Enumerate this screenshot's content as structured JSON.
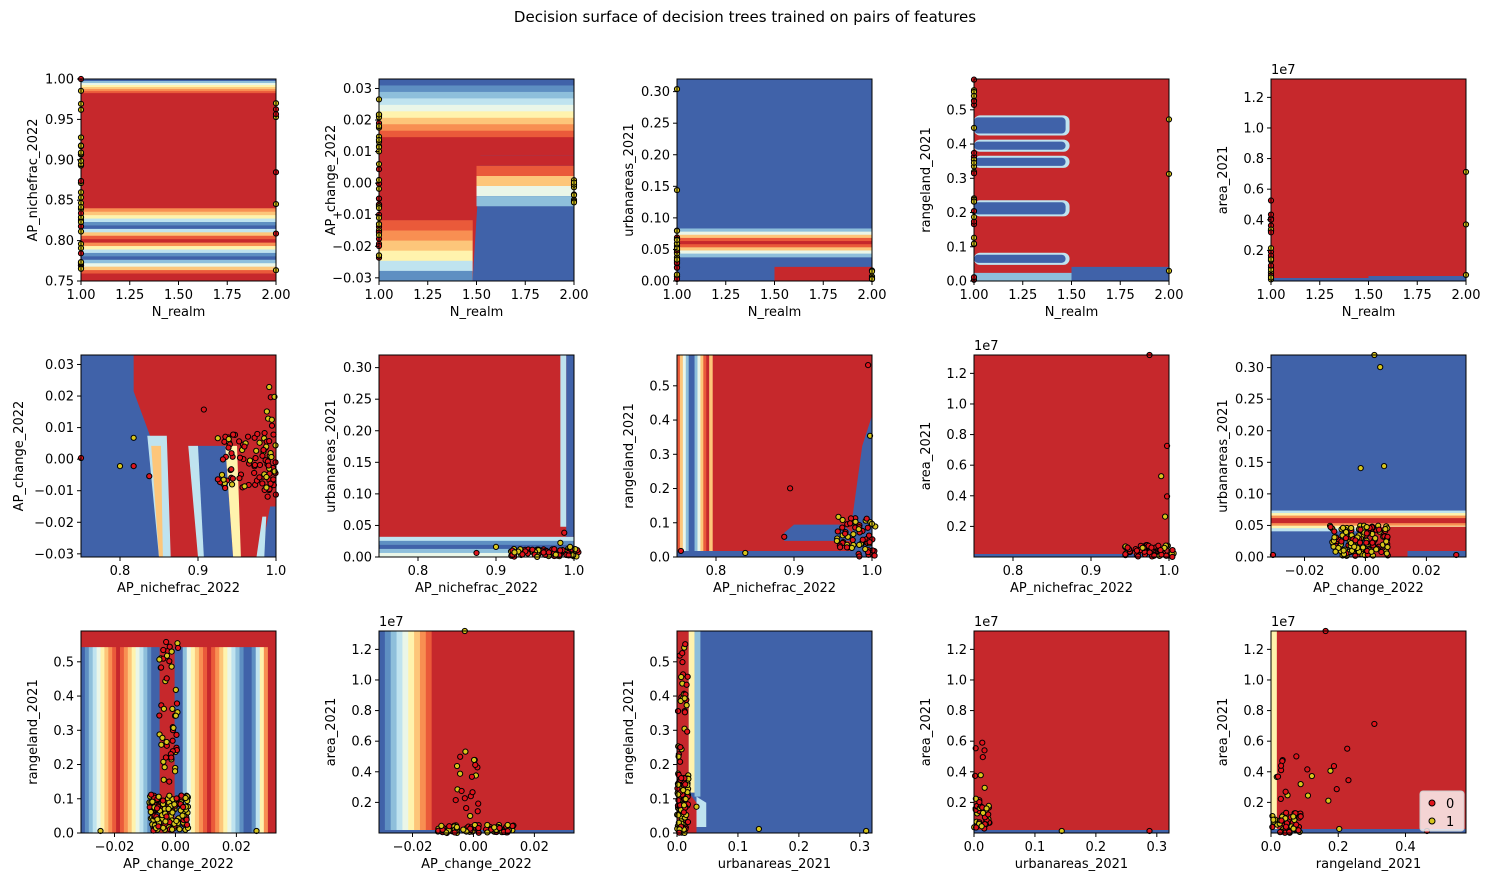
{
  "figure": {
    "title": "Decision surface of decision trees trained on pairs of features",
    "legend": {
      "location": "lower right",
      "entries": [
        "0",
        "1"
      ]
    }
  },
  "palette": {
    "class0": "#e0141c",
    "class1": "#d8c61c",
    "surface": [
      "#c6282c",
      "#ea5a3a",
      "#f88f52",
      "#fdc67a",
      "#fff3ad",
      "#eaf6e8",
      "#bfe3ef",
      "#8ebfdb",
      "#5e8fc2",
      "#4062a9"
    ]
  },
  "chart_data": [
    {
      "type": "scatter",
      "kind": "decision-surface",
      "xlabel": "N_realm",
      "ylabel": "AP_nichefrac_2022",
      "xlim": [
        1.0,
        2.0
      ],
      "ylim": [
        0.75,
        1.0
      ],
      "xticks": [
        "1.00",
        "1.25",
        "1.50",
        "1.75",
        "2.00"
      ],
      "yticks": [
        "0.75",
        "0.80",
        "0.85",
        "0.90",
        "0.95",
        "1.00"
      ],
      "offset": "",
      "legend": false
    },
    {
      "type": "scatter",
      "kind": "decision-surface",
      "xlabel": "N_realm",
      "ylabel": "AP_change_2022",
      "xlim": [
        1.0,
        2.0
      ],
      "ylim": [
        -0.031,
        0.033
      ],
      "xticks": [
        "1.00",
        "1.25",
        "1.50",
        "1.75",
        "2.00"
      ],
      "yticks": [
        "−0.03",
        "−0.02",
        "−0.01",
        "0.00",
        "0.01",
        "0.02",
        "0.03"
      ],
      "offset": "",
      "legend": false
    },
    {
      "type": "scatter",
      "kind": "decision-surface",
      "xlabel": "N_realm",
      "ylabel": "urbanareas_2021",
      "xlim": [
        1.0,
        2.0
      ],
      "ylim": [
        0.0,
        0.32
      ],
      "xticks": [
        "1.00",
        "1.25",
        "1.50",
        "1.75",
        "2.00"
      ],
      "yticks": [
        "0.00",
        "0.05",
        "0.10",
        "0.15",
        "0.20",
        "0.25",
        "0.30"
      ],
      "offset": "",
      "legend": false
    },
    {
      "type": "scatter",
      "kind": "decision-surface",
      "xlabel": "N_realm",
      "ylabel": "rangeland_2021",
      "xlim": [
        1.0,
        2.0
      ],
      "ylim": [
        0.0,
        0.59
      ],
      "xticks": [
        "1.00",
        "1.25",
        "1.50",
        "1.75",
        "2.00"
      ],
      "yticks": [
        "0.0",
        "0.1",
        "0.2",
        "0.3",
        "0.4",
        "0.5"
      ],
      "offset": "",
      "legend": false
    },
    {
      "type": "scatter",
      "kind": "decision-surface",
      "xlabel": "N_realm",
      "ylabel": "area_2021",
      "xlim": [
        1.0,
        2.0
      ],
      "ylim": [
        0.0,
        1.32
      ],
      "xticks": [
        "1.00",
        "1.25",
        "1.50",
        "1.75",
        "2.00"
      ],
      "yticks": [
        "0.2",
        "0.4",
        "0.6",
        "0.8",
        "1.0",
        "1.2"
      ],
      "offset": "1e7",
      "legend": false
    },
    {
      "type": "scatter",
      "kind": "decision-surface",
      "xlabel": "AP_nichefrac_2022",
      "ylabel": "AP_change_2022",
      "xlim": [
        0.75,
        1.0
      ],
      "ylim": [
        -0.031,
        0.033
      ],
      "xticks": [
        "0.8",
        "0.9",
        "1.0"
      ],
      "yticks": [
        "−0.03",
        "−0.02",
        "−0.01",
        "0.00",
        "0.01",
        "0.02",
        "0.03"
      ],
      "offset": "",
      "legend": false
    },
    {
      "type": "scatter",
      "kind": "decision-surface",
      "xlabel": "AP_nichefrac_2022",
      "ylabel": "urbanareas_2021",
      "xlim": [
        0.75,
        1.0
      ],
      "ylim": [
        0.0,
        0.32
      ],
      "xticks": [
        "0.8",
        "0.9",
        "1.0"
      ],
      "yticks": [
        "0.00",
        "0.05",
        "0.10",
        "0.15",
        "0.20",
        "0.25",
        "0.30"
      ],
      "offset": "",
      "legend": false
    },
    {
      "type": "scatter",
      "kind": "decision-surface",
      "xlabel": "AP_nichefrac_2022",
      "ylabel": "rangeland_2021",
      "xlim": [
        0.75,
        1.0
      ],
      "ylim": [
        0.0,
        0.59
      ],
      "xticks": [
        "0.8",
        "0.9",
        "1.0"
      ],
      "yticks": [
        "0.0",
        "0.1",
        "0.2",
        "0.3",
        "0.4",
        "0.5"
      ],
      "offset": "",
      "legend": false
    },
    {
      "type": "scatter",
      "kind": "decision-surface",
      "xlabel": "AP_nichefrac_2022",
      "ylabel": "area_2021",
      "xlim": [
        0.75,
        1.0
      ],
      "ylim": [
        0.0,
        1.32
      ],
      "xticks": [
        "0.8",
        "0.9",
        "1.0"
      ],
      "yticks": [
        "0.2",
        "0.4",
        "0.6",
        "0.8",
        "1.0",
        "1.2"
      ],
      "offset": "1e7",
      "legend": false
    },
    {
      "type": "scatter",
      "kind": "decision-surface",
      "xlabel": "AP_change_2022",
      "ylabel": "urbanareas_2021",
      "xlim": [
        -0.031,
        0.033
      ],
      "ylim": [
        0.0,
        0.32
      ],
      "xticks": [
        "−0.02",
        "0.00",
        "0.02"
      ],
      "yticks": [
        "0.00",
        "0.05",
        "0.10",
        "0.15",
        "0.20",
        "0.25",
        "0.30"
      ],
      "offset": "",
      "legend": false
    },
    {
      "type": "scatter",
      "kind": "decision-surface",
      "xlabel": "AP_change_2022",
      "ylabel": "rangeland_2021",
      "xlim": [
        -0.031,
        0.033
      ],
      "ylim": [
        0.0,
        0.59
      ],
      "xticks": [
        "−0.02",
        "0.00",
        "0.02"
      ],
      "yticks": [
        "0.0",
        "0.1",
        "0.2",
        "0.3",
        "0.4",
        "0.5"
      ],
      "offset": "",
      "legend": false
    },
    {
      "type": "scatter",
      "kind": "decision-surface",
      "xlabel": "AP_change_2022",
      "ylabel": "area_2021",
      "xlim": [
        -0.031,
        0.033
      ],
      "ylim": [
        0.0,
        1.32
      ],
      "xticks": [
        "−0.02",
        "0.00",
        "0.02"
      ],
      "yticks": [
        "0.2",
        "0.4",
        "0.6",
        "0.8",
        "1.0",
        "1.2"
      ],
      "offset": "1e7",
      "legend": false
    },
    {
      "type": "scatter",
      "kind": "decision-surface",
      "xlabel": "urbanareas_2021",
      "ylabel": "rangeland_2021",
      "xlim": [
        0.0,
        0.32
      ],
      "ylim": [
        0.0,
        0.59
      ],
      "xticks": [
        "0.0",
        "0.1",
        "0.2",
        "0.3"
      ],
      "yticks": [
        "0.0",
        "0.1",
        "0.2",
        "0.3",
        "0.4",
        "0.5"
      ],
      "offset": "",
      "legend": false
    },
    {
      "type": "scatter",
      "kind": "decision-surface",
      "xlabel": "urbanareas_2021",
      "ylabel": "area_2021",
      "xlim": [
        0.0,
        0.32
      ],
      "ylim": [
        0.0,
        1.32
      ],
      "xticks": [
        "0.0",
        "0.1",
        "0.2",
        "0.3"
      ],
      "yticks": [
        "0.2",
        "0.4",
        "0.6",
        "0.8",
        "1.0",
        "1.2"
      ],
      "offset": "1e7",
      "legend": false
    },
    {
      "type": "scatter",
      "kind": "decision-surface",
      "xlabel": "rangeland_2021",
      "ylabel": "area_2021",
      "xlim": [
        0.0,
        0.58
      ],
      "ylim": [
        0.0,
        1.32
      ],
      "xticks": [
        "0.0",
        "0.2",
        "0.4"
      ],
      "yticks": [
        "0.2",
        "0.4",
        "0.6",
        "0.8",
        "1.0",
        "1.2"
      ],
      "offset": "1e7",
      "legend": true
    }
  ]
}
